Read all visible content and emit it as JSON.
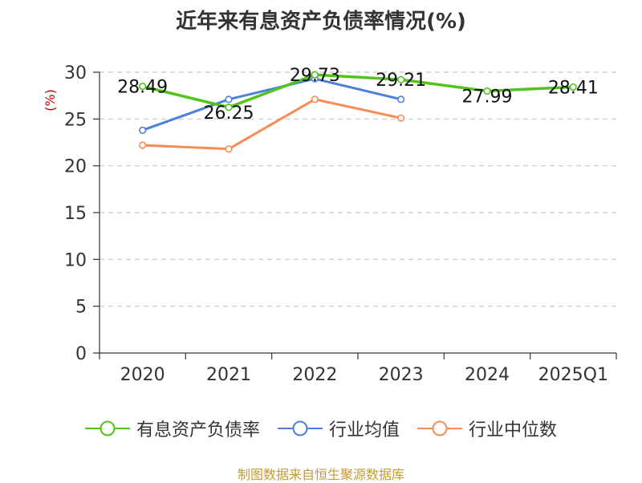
{
  "chart_data": {
    "type": "line",
    "title": "近年来有息资产负债率情况(%)",
    "ylabel": "(%)",
    "xlabel": "",
    "categories": [
      "2020",
      "2021",
      "2022",
      "2023",
      "2024",
      "2025Q1"
    ],
    "ylim": [
      0,
      30
    ],
    "yticks": [
      0,
      5,
      10,
      15,
      20,
      25,
      30
    ],
    "grid": true,
    "legend_position": "bottom",
    "series": [
      {
        "name": "有息资产负债率",
        "color": "#52c41a",
        "values": [
          28.49,
          26.25,
          29.73,
          29.21,
          27.99,
          28.41
        ],
        "labels": [
          "28.49",
          "26.25",
          "29.73",
          "29.21",
          "27.99",
          "28.41"
        ]
      },
      {
        "name": "行业均值",
        "color": "#4e7fdd",
        "values": [
          23.8,
          27.1,
          29.3,
          27.1,
          null,
          null
        ]
      },
      {
        "name": "行业中位数",
        "color": "#f78c55",
        "values": [
          22.2,
          21.8,
          27.1,
          25.1,
          null,
          null
        ]
      }
    ],
    "source": "制图数据来自恒生聚源数据库"
  }
}
